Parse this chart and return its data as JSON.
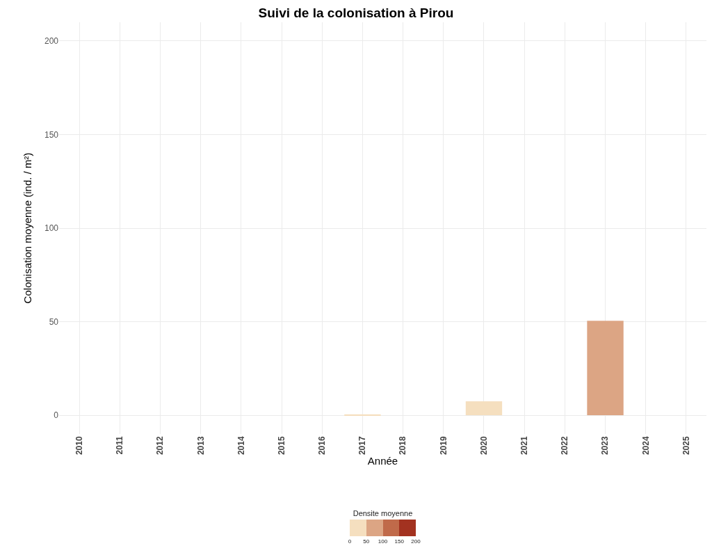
{
  "chart_data": {
    "type": "bar",
    "title": "Suivi de la colonisation à Pirou",
    "xlabel": "Année",
    "ylabel": "Colonisation moyenne (ind. / m²)",
    "clabel": "Densite moyenne",
    "categories": [
      "2010",
      "2011",
      "2012",
      "2013",
      "2014",
      "2015",
      "2016",
      "2017",
      "2018",
      "2019",
      "2020",
      "2021",
      "2022",
      "2023",
      "2024",
      "2025"
    ],
    "values": [
      0,
      0,
      0,
      0,
      0,
      0,
      0,
      0.5,
      0,
      0,
      7.5,
      0,
      0,
      50.5,
      0,
      0
    ],
    "colors": [
      "#f5dfbf",
      "#f5dfbf",
      "#f5dfbf",
      "#f5dfbf",
      "#f5dfbf",
      "#f5dfbf",
      "#f5dfbf",
      "#f5dfbf",
      "#f5dfbf",
      "#f5dfbf",
      "#f5dfbf",
      "#f5dfbf",
      "#f5dfbf",
      "#dca584",
      "#f5dfbf",
      "#f5dfbf"
    ],
    "ylim": [
      -10,
      210
    ],
    "yticks": [
      0,
      50,
      100,
      150,
      200
    ],
    "clim": [
      0,
      200
    ],
    "cticks": [
      0,
      50,
      100,
      150,
      200
    ],
    "grid": true
  }
}
